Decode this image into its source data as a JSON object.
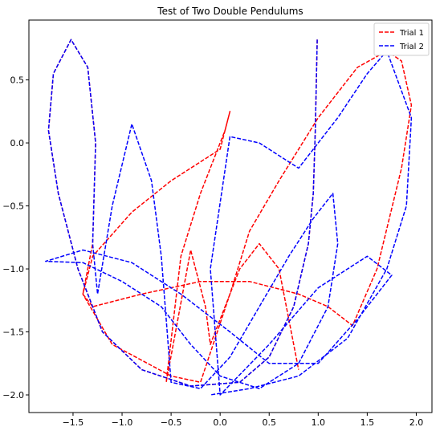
{
  "chart_data": {
    "type": "line",
    "title": "Test of Two Double Pendulums",
    "xlim": [
      -1.95,
      2.16
    ],
    "ylim": [
      -2.14,
      0.975
    ],
    "xticks": [
      {
        "value": -1.5,
        "label": "−1.5"
      },
      {
        "value": -1.0,
        "label": "−1.0"
      },
      {
        "value": -0.5,
        "label": "−0.5"
      },
      {
        "value": 0.0,
        "label": "0.0"
      },
      {
        "value": 0.5,
        "label": "0.5"
      },
      {
        "value": 1.0,
        "label": "1.0"
      },
      {
        "value": 1.5,
        "label": "1.5"
      },
      {
        "value": 2.0,
        "label": "2.0"
      }
    ],
    "yticks": [
      {
        "value": 0.5,
        "label": "0.5"
      },
      {
        "value": 0.0,
        "label": "0.0"
      },
      {
        "value": -0.5,
        "label": "−0.5"
      },
      {
        "value": -1.0,
        "label": "−1.0"
      },
      {
        "value": -1.5,
        "label": "−1.5"
      },
      {
        "value": -2.0,
        "label": "−2.0"
      }
    ],
    "legend": "upper right",
    "series": [
      {
        "name": "Trial 1",
        "color": "#ff0000",
        "x": [
          0.99,
          0.97,
          0.95,
          0.9,
          0.75,
          0.5,
          0.2,
          -0.3,
          -0.8,
          -1.2,
          -1.45,
          -1.65,
          -1.75,
          -1.7,
          -1.52,
          -1.35,
          -1.27,
          -1.3,
          -1.4,
          -1.3,
          -0.8,
          -0.2,
          0.3,
          0.8,
          1.1,
          1.35,
          1.6,
          1.85,
          1.95,
          1.85,
          1.7,
          1.4,
          1.0,
          0.6,
          0.3,
          0.1,
          -0.2,
          -0.5,
          -1.1,
          -1.4,
          -1.3,
          -0.9,
          -0.5,
          0.0,
          0.1,
          0.05,
          -0.2,
          -0.4,
          -0.55,
          -0.3,
          -0.15,
          -0.1,
          0.2,
          0.4,
          0.6,
          0.8
        ],
        "y": [
          0.82,
          0.1,
          -0.4,
          -0.8,
          -1.3,
          -1.7,
          -1.9,
          -1.93,
          -1.8,
          -1.5,
          -1.0,
          -0.4,
          0.1,
          0.55,
          0.82,
          0.6,
          0.0,
          -0.8,
          -1.2,
          -1.3,
          -1.2,
          -1.1,
          -1.1,
          -1.2,
          -1.3,
          -1.45,
          -1.0,
          -0.2,
          0.3,
          0.65,
          0.73,
          0.6,
          0.2,
          -0.3,
          -0.7,
          -1.2,
          -1.9,
          -1.85,
          -1.6,
          -1.2,
          -0.9,
          -0.55,
          -0.3,
          -0.05,
          0.25,
          0.1,
          -0.4,
          -0.9,
          -1.9,
          -0.85,
          -1.3,
          -1.6,
          -1.0,
          -0.8,
          -1.0,
          -1.8
        ]
      },
      {
        "name": "Trial 2",
        "color": "#0000ff",
        "x": [
          0.99,
          0.97,
          0.95,
          0.9,
          0.75,
          0.5,
          0.2,
          -0.3,
          -0.8,
          -1.2,
          -1.45,
          -1.65,
          -1.75,
          -1.7,
          -1.52,
          -1.35,
          -1.27,
          -1.3,
          -1.25,
          -1.1,
          -0.9,
          -0.7,
          -0.6,
          -0.55,
          -0.5,
          -0.2,
          0.1,
          0.4,
          0.7,
          0.95,
          1.15,
          1.2,
          1.1,
          0.8,
          0.4,
          0.0,
          -0.3,
          -0.6,
          -1.0,
          -1.4,
          -1.78,
          -1.4,
          -0.9,
          -0.4,
          0.1,
          0.5,
          1.0,
          1.4,
          1.75,
          1.5,
          1.0,
          0.5,
          0.0,
          -0.1,
          0.1,
          0.4,
          0.8,
          1.2,
          1.5,
          1.7,
          1.95,
          1.9,
          1.7,
          1.3,
          0.8,
          0.3,
          -0.1
        ],
        "y": [
          0.82,
          0.1,
          -0.4,
          -0.8,
          -1.3,
          -1.7,
          -1.9,
          -1.93,
          -1.8,
          -1.5,
          -1.0,
          -0.4,
          0.1,
          0.55,
          0.82,
          0.6,
          0.0,
          -0.8,
          -1.2,
          -0.5,
          0.15,
          -0.3,
          -0.9,
          -1.4,
          -1.9,
          -1.95,
          -1.7,
          -1.3,
          -0.9,
          -0.6,
          -0.4,
          -0.8,
          -1.3,
          -1.75,
          -1.95,
          -1.85,
          -1.6,
          -1.3,
          -1.1,
          -0.95,
          -0.94,
          -0.85,
          -0.95,
          -1.2,
          -1.5,
          -1.75,
          -1.75,
          -1.4,
          -1.05,
          -0.9,
          -1.15,
          -1.6,
          -2.0,
          -1.0,
          0.05,
          0.0,
          -0.2,
          0.2,
          0.55,
          0.73,
          0.2,
          -0.5,
          -1.0,
          -1.55,
          -1.85,
          -1.95,
          -2.0
        ]
      }
    ]
  }
}
